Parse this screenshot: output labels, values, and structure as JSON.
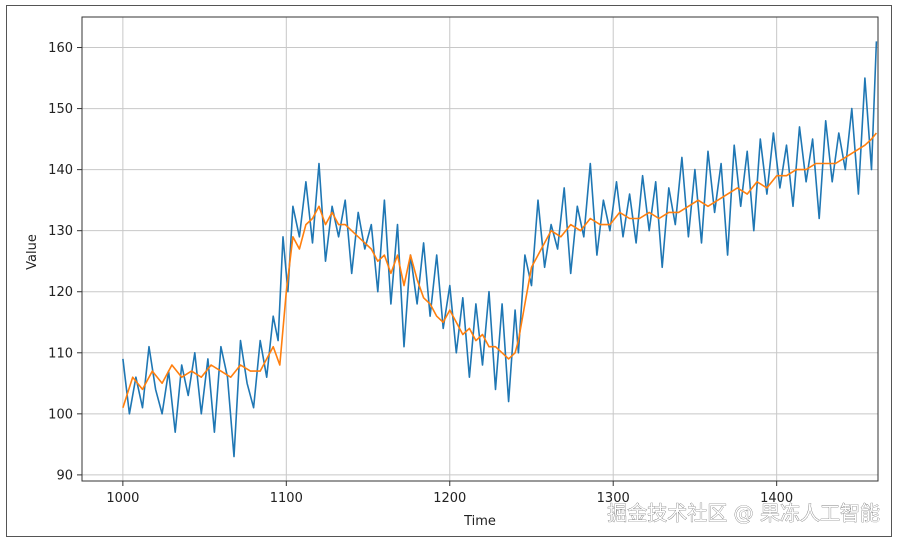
{
  "chart_data": {
    "type": "line",
    "xlabel": "Time",
    "ylabel": "Value",
    "xlim": [
      975,
      1462
    ],
    "ylim": [
      89,
      165
    ],
    "grid": true,
    "xticks": [
      1000,
      1100,
      1200,
      1300,
      1400
    ],
    "yticks": [
      90,
      100,
      110,
      120,
      130,
      140,
      150,
      160
    ],
    "series": [
      {
        "color": "#1f77b4",
        "x": [
          1000,
          1004,
          1008,
          1012,
          1016,
          1020,
          1024,
          1028,
          1032,
          1036,
          1040,
          1044,
          1048,
          1052,
          1056,
          1060,
          1064,
          1068,
          1072,
          1076,
          1080,
          1084,
          1088,
          1092,
          1095,
          1098,
          1101,
          1104,
          1108,
          1112,
          1116,
          1120,
          1124,
          1128,
          1132,
          1136,
          1140,
          1144,
          1148,
          1152,
          1156,
          1160,
          1164,
          1168,
          1172,
          1176,
          1180,
          1184,
          1188,
          1192,
          1196,
          1200,
          1204,
          1208,
          1212,
          1216,
          1220,
          1224,
          1228,
          1232,
          1236,
          1240,
          1242,
          1246,
          1250,
          1254,
          1258,
          1262,
          1266,
          1270,
          1274,
          1278,
          1282,
          1286,
          1290,
          1294,
          1298,
          1302,
          1306,
          1310,
          1314,
          1318,
          1322,
          1326,
          1330,
          1334,
          1338,
          1342,
          1346,
          1350,
          1354,
          1358,
          1362,
          1366,
          1370,
          1374,
          1378,
          1382,
          1386,
          1390,
          1394,
          1398,
          1402,
          1406,
          1410,
          1414,
          1418,
          1422,
          1426,
          1430,
          1434,
          1438,
          1442,
          1446,
          1450,
          1454,
          1458,
          1461
        ],
        "values": [
          109,
          100,
          106,
          101,
          111,
          104,
          100,
          107,
          97,
          108,
          103,
          110,
          100,
          109,
          97,
          111,
          106,
          93,
          112,
          105,
          101,
          112,
          106,
          116,
          112,
          129,
          120,
          134,
          129,
          138,
          128,
          141,
          125,
          134,
          129,
          135,
          123,
          133,
          127,
          131,
          120,
          135,
          118,
          131,
          111,
          126,
          118,
          128,
          116,
          126,
          114,
          121,
          110,
          119,
          106,
          118,
          108,
          120,
          104,
          118,
          102,
          117,
          110,
          126,
          121,
          135,
          124,
          131,
          127,
          137,
          123,
          134,
          129,
          141,
          126,
          135,
          130,
          138,
          129,
          136,
          128,
          139,
          130,
          138,
          124,
          137,
          131,
          142,
          129,
          140,
          128,
          143,
          133,
          141,
          126,
          144,
          134,
          143,
          130,
          145,
          136,
          146,
          137,
          144,
          134,
          147,
          138,
          145,
          132,
          148,
          138,
          146,
          140,
          150,
          136,
          155,
          140,
          161
        ]
      },
      {
        "color": "#ff7f0e",
        "x": [
          1000,
          1006,
          1012,
          1018,
          1024,
          1030,
          1036,
          1042,
          1048,
          1054,
          1060,
          1066,
          1072,
          1078,
          1084,
          1088,
          1092,
          1096,
          1100,
          1104,
          1108,
          1112,
          1116,
          1120,
          1124,
          1128,
          1132,
          1136,
          1140,
          1144,
          1148,
          1152,
          1156,
          1160,
          1164,
          1168,
          1172,
          1176,
          1180,
          1184,
          1188,
          1192,
          1196,
          1200,
          1204,
          1208,
          1212,
          1216,
          1220,
          1224,
          1228,
          1232,
          1236,
          1240,
          1242,
          1246,
          1250,
          1256,
          1262,
          1268,
          1274,
          1280,
          1286,
          1292,
          1298,
          1304,
          1310,
          1316,
          1322,
          1328,
          1334,
          1340,
          1346,
          1352,
          1358,
          1364,
          1370,
          1376,
          1382,
          1388,
          1394,
          1400,
          1406,
          1412,
          1418,
          1424,
          1430,
          1436,
          1442,
          1448,
          1454,
          1458,
          1461
        ],
        "values": [
          101,
          106,
          104,
          107,
          105,
          108,
          106,
          107,
          106,
          108,
          107,
          106,
          108,
          107,
          107,
          109,
          111,
          108,
          120,
          129,
          127,
          131,
          132,
          134,
          131,
          133,
          131,
          131,
          130,
          129,
          128,
          127,
          125,
          126,
          123,
          126,
          121,
          126,
          122,
          119,
          118,
          116,
          115,
          117,
          115,
          113,
          114,
          112,
          113,
          111,
          111,
          110,
          109,
          110,
          112,
          118,
          124,
          127,
          130,
          129,
          131,
          130,
          132,
          131,
          131,
          133,
          132,
          132,
          133,
          132,
          133,
          133,
          134,
          135,
          134,
          135,
          136,
          137,
          136,
          138,
          137,
          139,
          139,
          140,
          140,
          141,
          141,
          141,
          142,
          143,
          144,
          145,
          146
        ]
      }
    ]
  },
  "watermark": "掘金技术社区 @ 果冻人工智能"
}
